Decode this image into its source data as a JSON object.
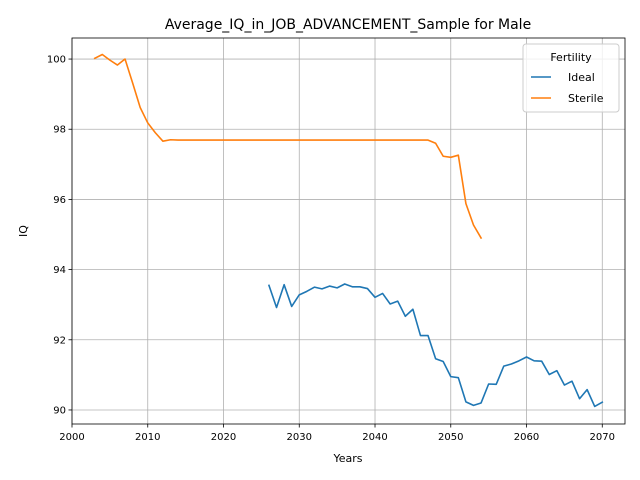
{
  "chart_data": {
    "type": "line",
    "title": "Average_IQ_in_JOB_ADVANCEMENT_Sample for Male",
    "xlabel": "Years",
    "ylabel": "IQ",
    "xlim": [
      2000,
      2073
    ],
    "ylim": [
      89.6,
      100.6
    ],
    "xticks": [
      2000,
      2010,
      2020,
      2030,
      2040,
      2050,
      2060,
      2070
    ],
    "yticks": [
      90,
      92,
      94,
      96,
      98,
      100
    ],
    "grid": true,
    "legend": {
      "title": "Fertility",
      "placement": "top-right"
    },
    "series": [
      {
        "name": "Ideal",
        "color": "#1f77b4",
        "x": [
          2026,
          2027,
          2028,
          2029,
          2030,
          2031,
          2032,
          2033,
          2034,
          2035,
          2036,
          2037,
          2038,
          2039,
          2040,
          2041,
          2042,
          2043,
          2044,
          2045,
          2046,
          2047,
          2048,
          2049,
          2050,
          2051,
          2052,
          2053,
          2054,
          2055,
          2056,
          2057,
          2058,
          2059,
          2060,
          2061,
          2062,
          2063,
          2064,
          2065,
          2066,
          2067,
          2068,
          2069,
          2070
        ],
        "y": [
          93.55,
          92.92,
          93.57,
          92.95,
          93.28,
          93.38,
          93.5,
          93.45,
          93.53,
          93.48,
          93.59,
          93.51,
          93.51,
          93.46,
          93.21,
          93.32,
          93.02,
          93.1,
          92.67,
          92.87,
          92.12,
          92.12,
          91.46,
          91.38,
          90.95,
          90.92,
          90.23,
          90.13,
          90.2,
          90.74,
          90.73,
          91.25,
          91.31,
          91.4,
          91.51,
          91.4,
          91.39,
          91.01,
          91.12,
          90.71,
          90.82,
          90.32,
          90.58,
          90.1,
          90.22
        ]
      },
      {
        "name": "Sterile",
        "color": "#ff7f0e",
        "x": [
          2003,
          2004,
          2005,
          2006,
          2007,
          2008,
          2009,
          2010,
          2011,
          2012,
          2013,
          2014,
          2015,
          2016,
          2017,
          2018,
          2019,
          2020,
          2021,
          2022,
          2023,
          2024,
          2025,
          2026,
          2027,
          2028,
          2029,
          2030,
          2031,
          2032,
          2033,
          2034,
          2035,
          2036,
          2037,
          2038,
          2039,
          2040,
          2041,
          2042,
          2043,
          2044,
          2045,
          2046,
          2047,
          2048,
          2049,
          2050,
          2051,
          2052,
          2053,
          2054
        ],
        "y": [
          100.02,
          100.13,
          99.97,
          99.83,
          100.0,
          99.32,
          98.62,
          98.18,
          97.9,
          97.66,
          97.7,
          97.69,
          97.69,
          97.69,
          97.69,
          97.69,
          97.69,
          97.69,
          97.69,
          97.69,
          97.69,
          97.69,
          97.69,
          97.69,
          97.69,
          97.69,
          97.69,
          97.69,
          97.69,
          97.69,
          97.69,
          97.69,
          97.69,
          97.69,
          97.69,
          97.69,
          97.69,
          97.69,
          97.69,
          97.69,
          97.69,
          97.69,
          97.69,
          97.69,
          97.69,
          97.6,
          97.23,
          97.2,
          97.26,
          95.88,
          95.27,
          94.9
        ]
      }
    ]
  }
}
